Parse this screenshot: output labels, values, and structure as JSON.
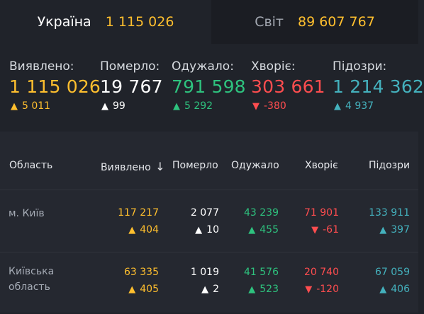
{
  "tabs": [
    {
      "name": "Україна",
      "value": "1 115 026"
    },
    {
      "name": "Світ",
      "value": "89 607 767"
    }
  ],
  "summary": [
    {
      "label": "Виявлено:",
      "value": "1 115 026",
      "delta": "5 011",
      "direction": "up",
      "color": "#ffbf2e",
      "arrow_color": "#ffbf2e"
    },
    {
      "label": "Померло:",
      "value": "19 767",
      "delta": "99",
      "direction": "up",
      "color": "#ffffff",
      "arrow_color": "#ffffff"
    },
    {
      "label": "Одужало:",
      "value": "791 598",
      "delta": "5 292",
      "direction": "up",
      "color": "#2ec27e",
      "arrow_color": "#2ec27e"
    },
    {
      "label": "Хворіє:",
      "value": "303 661",
      "delta": "-380",
      "direction": "down",
      "color": "#ff4d4f",
      "arrow_color": "#ff4d4f"
    },
    {
      "label": "Підозри:",
      "value": "1 214 362",
      "delta": "4 937",
      "direction": "up",
      "color": "#44b1bd",
      "arrow_color": "#44b1bd"
    }
  ],
  "table": {
    "headers": [
      "Область",
      "Виявлено",
      "Померло",
      "Одужало",
      "Хворіє",
      "Підозри"
    ],
    "sort_icon": "sort-down-arrow-icon",
    "rows": [
      {
        "region": [
          "м. Київ"
        ],
        "values": [
          "117 217",
          "2 077",
          "43 239",
          "71 901",
          "133 911"
        ],
        "deltas": [
          "404",
          "10",
          "455",
          "-61",
          "397"
        ]
      },
      {
        "region": [
          "Київська",
          "область"
        ],
        "values": [
          "63 335",
          "1 019",
          "41 576",
          "20 740",
          "67 059"
        ],
        "deltas": [
          "405",
          "2",
          "523",
          "-120",
          "406"
        ]
      }
    ]
  },
  "colors": {
    "confirmed": "#ffbf2e",
    "deaths": "#ffffff",
    "recovered": "#2ec27e",
    "sick": "#ff4d4f",
    "suspected": "#44b1bd"
  }
}
